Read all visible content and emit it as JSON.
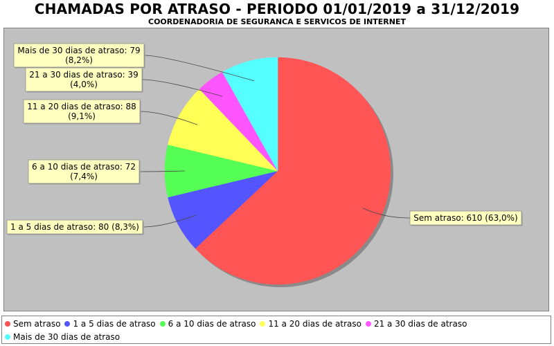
{
  "chart_data": {
    "type": "pie",
    "title": "CHAMADAS POR ATRASO - PERIODO 01/01/2019 a 31/12/2019",
    "subtitle": "COORDENADORIA DE SEGURANCA E SERVICOS DE INTERNET",
    "slices": [
      {
        "name": "Sem atraso",
        "value": 610,
        "percent": "63,0%",
        "color": "#ff5555",
        "label_lines": [
          "Sem atraso: 610 (63,0%)"
        ]
      },
      {
        "name": "1 a 5 dias de atraso",
        "value": 80,
        "percent": "8,3%",
        "color": "#5555ff",
        "label_lines": [
          "1 a 5 dias de atraso: 80 (8,3%)"
        ]
      },
      {
        "name": "6 a 10 dias de atraso",
        "value": 72,
        "percent": "7,4%",
        "color": "#55ff55",
        "label_lines": [
          "6 a 10 dias de atraso: 72",
          "(7,4%)"
        ]
      },
      {
        "name": "11 a 20 dias de atraso",
        "value": 88,
        "percent": "9,1%",
        "color": "#ffff55",
        "label_lines": [
          "11 a 20 dias de atraso: 88",
          "(9,1%)"
        ]
      },
      {
        "name": "21 a 30 dias de atraso",
        "value": 39,
        "percent": "4,0%",
        "color": "#ff55ff",
        "label_lines": [
          "21 a 30 dias de atraso: 39",
          "(4,0%)"
        ]
      },
      {
        "name": "Mais de 30 dias de atraso",
        "value": 79,
        "percent": "8,2%",
        "color": "#55ffff",
        "label_lines": [
          "Mais de 30 dias de atraso: 79",
          "(8,2%)"
        ]
      }
    ],
    "legend_position": "bottom",
    "background": "#c0c0c0"
  }
}
